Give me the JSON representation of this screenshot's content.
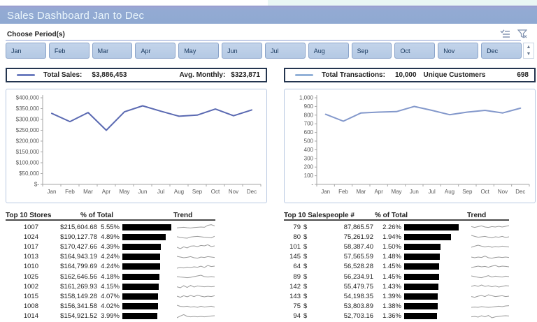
{
  "header": {
    "title": "Sales Dashboard Jan to Dec"
  },
  "slicer": {
    "label": "Choose Period(s)",
    "months": [
      "Jan",
      "Feb",
      "Mar",
      "Apr",
      "May",
      "Jun",
      "Jul",
      "Aug",
      "Sep",
      "Oct",
      "Nov",
      "Dec"
    ],
    "multiselect_icon": "multi-select",
    "clear_filter_icon": "clear-filter",
    "scroll_up": "▲",
    "scroll_down": "▼"
  },
  "summary_left": {
    "label1": "Total Sales:",
    "value1": "$3,886,453",
    "label2": "Avg. Monthly:",
    "value2": "$323,871",
    "dash_color": "#6f7fc0"
  },
  "summary_right": {
    "label1": "Total Transactions:",
    "value1": "10,000",
    "label2": "Unique Customers",
    "value2": "698",
    "dash_color": "#94b2d8"
  },
  "chart_data": [
    {
      "type": "line",
      "x": [
        "Jan",
        "Feb",
        "Mar",
        "Apr",
        "May",
        "Jun",
        "Jul",
        "Aug",
        "Sep",
        "Oct",
        "Nov",
        "Dec"
      ],
      "values": [
        328000,
        290000,
        332000,
        250000,
        335000,
        363000,
        338000,
        315000,
        320000,
        348000,
        317000,
        344000
      ],
      "ylim": [
        0,
        400000
      ],
      "yticks": [
        "$400,000",
        "$350,000",
        "$300,000",
        "$250,000",
        "$200,000",
        "$150,000",
        "$100,000",
        "$50,000",
        "$-"
      ],
      "line_color": "#5b6ab2",
      "grid": false,
      "legend": "none"
    },
    {
      "type": "line",
      "x": [
        "Jan",
        "Feb",
        "Mar",
        "Apr",
        "May",
        "Jun",
        "Jul",
        "Aug",
        "Sep",
        "Oct",
        "Nov",
        "Dec"
      ],
      "values": [
        810,
        730,
        825,
        835,
        840,
        900,
        855,
        805,
        835,
        855,
        825,
        880
      ],
      "ylim": [
        0,
        1000
      ],
      "yticks": [
        "1,000",
        "900",
        "800",
        "700",
        "600",
        "500",
        "400",
        "300",
        "200",
        "100",
        "-"
      ],
      "line_color": "#8398cb",
      "grid": false,
      "legend": "none"
    }
  ],
  "stores_table": {
    "title": "Top 10 Stores",
    "col_pct": "% of Total",
    "col_trend": "Trend",
    "rows": [
      {
        "id": "1007",
        "value": "$215,604.68",
        "pct": "5.55%",
        "pct_num": 5.55,
        "spark": [
          0.38,
          0.42,
          0.46,
          0.4,
          0.36,
          0.42,
          0.46,
          0.5,
          0.46,
          0.74,
          0.84,
          0.66
        ]
      },
      {
        "id": "1024",
        "value": "$190,127.78",
        "pct": "4.89%",
        "pct_num": 4.89,
        "spark": [
          0.52,
          0.4,
          0.34,
          0.3,
          0.46,
          0.52,
          0.56,
          0.5,
          0.44,
          0.4,
          0.34,
          0.58
        ]
      },
      {
        "id": "1017",
        "value": "$170,427.66",
        "pct": "4.39%",
        "pct_num": 4.39,
        "spark": [
          0.4,
          0.2,
          0.46,
          0.3,
          0.56,
          0.6,
          0.5,
          0.66,
          0.6,
          0.76,
          0.5,
          0.6
        ]
      },
      {
        "id": "1013",
        "value": "$164,943.19",
        "pct": "4.24%",
        "pct_num": 4.24,
        "spark": [
          0.6,
          0.5,
          0.4,
          0.46,
          0.56,
          0.4,
          0.34,
          0.5,
          0.44,
          0.56,
          0.5,
          0.44
        ]
      },
      {
        "id": "1010",
        "value": "$164,799.69",
        "pct": "4.24%",
        "pct_num": 4.24,
        "spark": [
          0.3,
          0.4,
          0.34,
          0.46,
          0.4,
          0.5,
          0.44,
          0.6,
          0.4,
          0.7,
          0.54,
          0.6
        ]
      },
      {
        "id": "1025",
        "value": "$162,646.56",
        "pct": "4.18%",
        "pct_num": 4.18,
        "spark": [
          0.5,
          0.44,
          0.4,
          0.34,
          0.4,
          0.5,
          0.6,
          0.7,
          0.5,
          0.44,
          0.5,
          0.44
        ]
      },
      {
        "id": "1002",
        "value": "$161,269.93",
        "pct": "4.15%",
        "pct_num": 4.15,
        "spark": [
          0.44,
          0.3,
          0.6,
          0.34,
          0.64,
          0.4,
          0.56,
          0.5,
          0.44,
          0.5,
          0.44,
          0.5
        ]
      },
      {
        "id": "1015",
        "value": "$158,149.28",
        "pct": "4.07%",
        "pct_num": 4.07,
        "spark": [
          0.5,
          0.34,
          0.56,
          0.4,
          0.6,
          0.44,
          0.64,
          0.5,
          0.4,
          0.5,
          0.44,
          0.56
        ]
      },
      {
        "id": "1008",
        "value": "$156,341.58",
        "pct": "4.02%",
        "pct_num": 4.02,
        "spark": [
          0.7,
          0.54,
          0.5,
          0.56,
          0.44,
          0.5,
          0.4,
          0.56,
          0.44,
          0.5,
          0.56,
          0.44
        ]
      },
      {
        "id": "1014",
        "value": "$154,921.52",
        "pct": "3.99%",
        "pct_num": 3.99,
        "spark": [
          0.3,
          0.56,
          0.76,
          0.5,
          0.44,
          0.5,
          0.44,
          0.5,
          0.44,
          0.5,
          0.56,
          0.6
        ]
      }
    ]
  },
  "sales_table": {
    "title": "Top 10 Salespeople #",
    "col_pct": "% of Total",
    "col_trend": "Trend",
    "rows": [
      {
        "id": "79",
        "cur": "$",
        "value": "87,865.57",
        "pct": "2.26%",
        "pct_num": 2.26,
        "spark": [
          0.56,
          0.44,
          0.56,
          0.66,
          0.5,
          0.44,
          0.56,
          0.5,
          0.6,
          0.5,
          0.6,
          0.7
        ]
      },
      {
        "id": "80",
        "cur": "$",
        "value": "75,261.92",
        "pct": "1.94%",
        "pct_num": 1.94,
        "spark": [
          0.7,
          0.56,
          0.44,
          0.5,
          0.56,
          0.44,
          0.34,
          0.5,
          0.44,
          0.56,
          0.4,
          0.5
        ]
      },
      {
        "id": "101",
        "cur": "$",
        "value": "58,387.40",
        "pct": "1.50%",
        "pct_num": 1.5,
        "spark": [
          0.4,
          0.56,
          0.7,
          0.56,
          0.44,
          0.56,
          0.4,
          0.5,
          0.44,
          0.56,
          0.5,
          0.44
        ]
      },
      {
        "id": "145",
        "cur": "$",
        "value": "57,565.59",
        "pct": "1.48%",
        "pct_num": 1.48,
        "spark": [
          0.5,
          0.4,
          0.5,
          0.44,
          0.64,
          0.4,
          0.34,
          0.44,
          0.5,
          0.44,
          0.5,
          0.44
        ]
      },
      {
        "id": "64",
        "cur": "$",
        "value": "56,528.28",
        "pct": "1.45%",
        "pct_num": 1.45,
        "spark": [
          0.4,
          0.5,
          0.6,
          0.5,
          0.56,
          0.44,
          0.6,
          0.7,
          0.5,
          0.6,
          0.56,
          0.5
        ]
      },
      {
        "id": "89",
        "cur": "$",
        "value": "56,234.91",
        "pct": "1.45%",
        "pct_num": 1.45,
        "spark": [
          0.6,
          0.5,
          0.4,
          0.34,
          0.5,
          0.64,
          0.44,
          0.56,
          0.5,
          0.44,
          0.56,
          0.5
        ]
      },
      {
        "id": "142",
        "cur": "$",
        "value": "55,479.75",
        "pct": "1.43%",
        "pct_num": 1.43,
        "spark": [
          0.5,
          0.64,
          0.5,
          0.7,
          0.5,
          0.6,
          0.44,
          0.56,
          0.4,
          0.5,
          0.6,
          0.56
        ]
      },
      {
        "id": "143",
        "cur": "$",
        "value": "54,198.35",
        "pct": "1.39%",
        "pct_num": 1.39,
        "spark": [
          0.44,
          0.34,
          0.5,
          0.6,
          0.44,
          0.7,
          0.56,
          0.44,
          0.5,
          0.56,
          0.44,
          0.5
        ]
      },
      {
        "id": "75",
        "cur": "$",
        "value": "53,803.89",
        "pct": "1.38%",
        "pct_num": 1.38,
        "spark": [
          0.4,
          0.44,
          0.4,
          0.5,
          0.44,
          0.4,
          0.44,
          0.5,
          0.56,
          0.5,
          0.6,
          0.64
        ]
      },
      {
        "id": "94",
        "cur": "$",
        "value": "52,703.16",
        "pct": "1.36%",
        "pct_num": 1.36,
        "spark": [
          0.44,
          0.5,
          0.4,
          0.6,
          0.44,
          0.64,
          0.3,
          0.44,
          0.5,
          0.56,
          0.6,
          0.56
        ]
      }
    ]
  },
  "colors": {
    "title_bar": "#93aad3",
    "slicer_fill": "#b9cce6",
    "summary_border": "#24354f",
    "bar_fill": "#000000",
    "spark_stroke": "#9a9a9a",
    "axis_text": "#595959"
  }
}
